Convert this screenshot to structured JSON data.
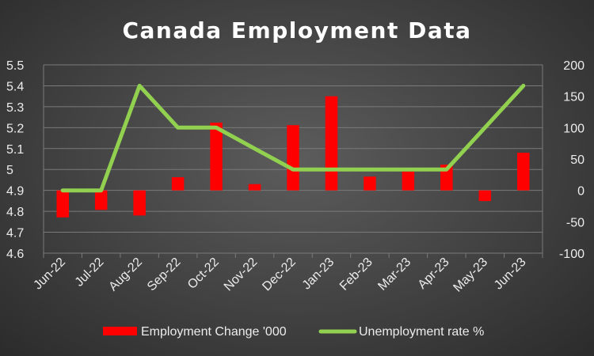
{
  "chart_data": {
    "type": "bar+line",
    "title": "Canada Employment Data",
    "categories": [
      "Jun-22",
      "Jul-22",
      "Aug-22",
      "Sep-22",
      "Oct-22",
      "Nov-22",
      "Dec-22",
      "Jan-23",
      "Feb-23",
      "Mar-23",
      "Apr-23",
      "May-23",
      "Jun-23"
    ],
    "series": [
      {
        "name": "Employment Change '000",
        "type": "bar",
        "axis": "right",
        "color": "#ff0000",
        "values": [
          -43,
          -31,
          -40,
          21,
          108,
          10,
          104,
          150,
          22,
          30,
          41,
          -17,
          60
        ]
      },
      {
        "name": "Unemployment rate %",
        "type": "line",
        "axis": "left",
        "color": "#92d050",
        "values": [
          4.9,
          4.9,
          5.4,
          5.2,
          5.2,
          5.1,
          5.0,
          5.0,
          5.0,
          5.0,
          5.0,
          5.2,
          5.4
        ]
      }
    ],
    "y_left": {
      "min": 4.6,
      "max": 5.5,
      "ticks": [
        "4.6",
        "4.7",
        "4.8",
        "4.9",
        "5",
        "5.1",
        "5.2",
        "5.3",
        "5.4",
        "5.5"
      ]
    },
    "y_right": {
      "min": -100,
      "max": 200,
      "ticks": [
        "-100",
        "-50",
        "0",
        "50",
        "100",
        "150",
        "200"
      ]
    },
    "grid": true,
    "legend_position": "bottom"
  }
}
